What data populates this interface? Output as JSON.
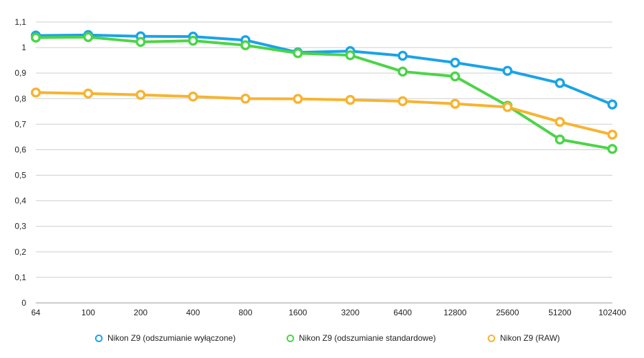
{
  "chart_data": {
    "type": "line",
    "categories": [
      "64",
      "100",
      "200",
      "400",
      "800",
      "1600",
      "3200",
      "6400",
      "12800",
      "25600",
      "51200",
      "102400"
    ],
    "y_ticks": [
      "0",
      "0,1",
      "0,2",
      "0,3",
      "0,4",
      "0,5",
      "0,6",
      "0,7",
      "0,8",
      "0,9",
      "1",
      "1,1"
    ],
    "ylim": [
      0,
      1.1
    ],
    "grid": true,
    "legend_position": "bottom",
    "series": [
      {
        "name": "Nikon Z9 (odszumianie wyłączone)",
        "color": "#1aa3e8",
        "values": [
          1.047,
          1.049,
          1.044,
          1.043,
          1.029,
          0.981,
          0.986,
          0.968,
          0.941,
          0.909,
          0.861,
          0.777
        ]
      },
      {
        "name": "Nikon Z9 (odszumianie standardowe)",
        "color": "#4cd448",
        "values": [
          1.039,
          1.041,
          1.022,
          1.027,
          1.009,
          0.978,
          0.97,
          0.906,
          0.887,
          0.772,
          0.64,
          0.603
        ]
      },
      {
        "name": "Nikon Z9 (RAW)",
        "color": "#f8b330",
        "values": [
          0.824,
          0.82,
          0.815,
          0.808,
          0.8,
          0.799,
          0.795,
          0.79,
          0.78,
          0.767,
          0.709,
          0.659
        ]
      }
    ]
  }
}
